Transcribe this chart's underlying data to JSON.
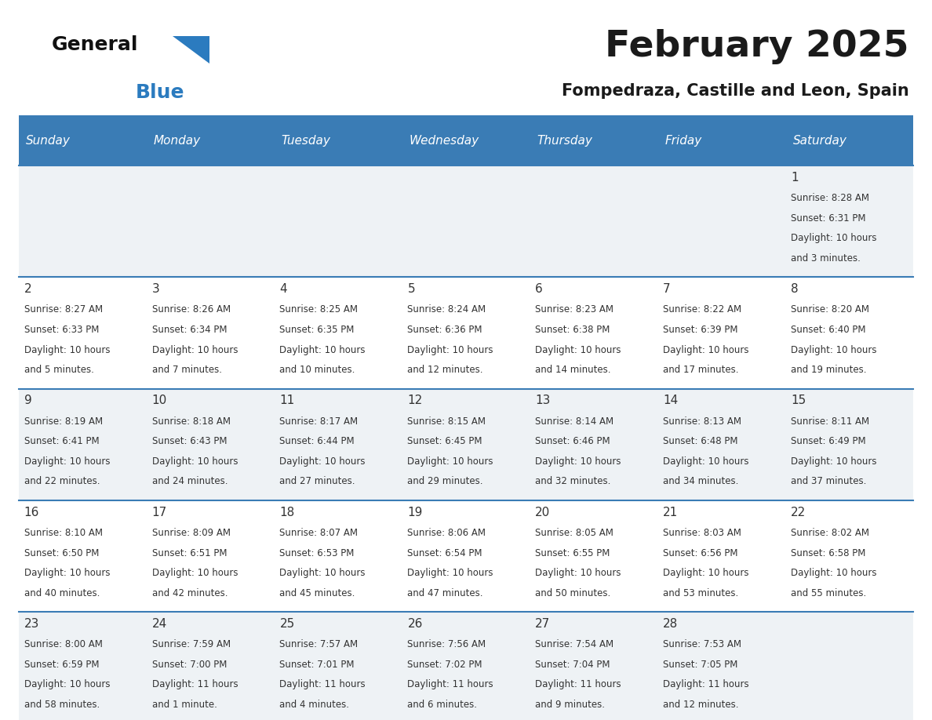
{
  "title": "February 2025",
  "subtitle": "Fompedraza, Castille and Leon, Spain",
  "header_bg": "#3a7cb5",
  "header_text_color": "#ffffff",
  "row_bg_gray": "#eef2f5",
  "row_bg_white": "#ffffff",
  "border_color": "#3a7cb5",
  "text_color": "#333333",
  "days_of_week": [
    "Sunday",
    "Monday",
    "Tuesday",
    "Wednesday",
    "Thursday",
    "Friday",
    "Saturday"
  ],
  "logo_general_color": "#111111",
  "logo_blue_color": "#2b7bbf",
  "calendar": [
    [
      null,
      null,
      null,
      null,
      null,
      null,
      {
        "day": "1",
        "sunrise": "8:28 AM",
        "sunset": "6:31 PM",
        "daylight_line1": "Daylight: 10 hours",
        "daylight_line2": "and 3 minutes."
      }
    ],
    [
      {
        "day": "2",
        "sunrise": "8:27 AM",
        "sunset": "6:33 PM",
        "daylight_line1": "Daylight: 10 hours",
        "daylight_line2": "and 5 minutes."
      },
      {
        "day": "3",
        "sunrise": "8:26 AM",
        "sunset": "6:34 PM",
        "daylight_line1": "Daylight: 10 hours",
        "daylight_line2": "and 7 minutes."
      },
      {
        "day": "4",
        "sunrise": "8:25 AM",
        "sunset": "6:35 PM",
        "daylight_line1": "Daylight: 10 hours",
        "daylight_line2": "and 10 minutes."
      },
      {
        "day": "5",
        "sunrise": "8:24 AM",
        "sunset": "6:36 PM",
        "daylight_line1": "Daylight: 10 hours",
        "daylight_line2": "and 12 minutes."
      },
      {
        "day": "6",
        "sunrise": "8:23 AM",
        "sunset": "6:38 PM",
        "daylight_line1": "Daylight: 10 hours",
        "daylight_line2": "and 14 minutes."
      },
      {
        "day": "7",
        "sunrise": "8:22 AM",
        "sunset": "6:39 PM",
        "daylight_line1": "Daylight: 10 hours",
        "daylight_line2": "and 17 minutes."
      },
      {
        "day": "8",
        "sunrise": "8:20 AM",
        "sunset": "6:40 PM",
        "daylight_line1": "Daylight: 10 hours",
        "daylight_line2": "and 19 minutes."
      }
    ],
    [
      {
        "day": "9",
        "sunrise": "8:19 AM",
        "sunset": "6:41 PM",
        "daylight_line1": "Daylight: 10 hours",
        "daylight_line2": "and 22 minutes."
      },
      {
        "day": "10",
        "sunrise": "8:18 AM",
        "sunset": "6:43 PM",
        "daylight_line1": "Daylight: 10 hours",
        "daylight_line2": "and 24 minutes."
      },
      {
        "day": "11",
        "sunrise": "8:17 AM",
        "sunset": "6:44 PM",
        "daylight_line1": "Daylight: 10 hours",
        "daylight_line2": "and 27 minutes."
      },
      {
        "day": "12",
        "sunrise": "8:15 AM",
        "sunset": "6:45 PM",
        "daylight_line1": "Daylight: 10 hours",
        "daylight_line2": "and 29 minutes."
      },
      {
        "day": "13",
        "sunrise": "8:14 AM",
        "sunset": "6:46 PM",
        "daylight_line1": "Daylight: 10 hours",
        "daylight_line2": "and 32 minutes."
      },
      {
        "day": "14",
        "sunrise": "8:13 AM",
        "sunset": "6:48 PM",
        "daylight_line1": "Daylight: 10 hours",
        "daylight_line2": "and 34 minutes."
      },
      {
        "day": "15",
        "sunrise": "8:11 AM",
        "sunset": "6:49 PM",
        "daylight_line1": "Daylight: 10 hours",
        "daylight_line2": "and 37 minutes."
      }
    ],
    [
      {
        "day": "16",
        "sunrise": "8:10 AM",
        "sunset": "6:50 PM",
        "daylight_line1": "Daylight: 10 hours",
        "daylight_line2": "and 40 minutes."
      },
      {
        "day": "17",
        "sunrise": "8:09 AM",
        "sunset": "6:51 PM",
        "daylight_line1": "Daylight: 10 hours",
        "daylight_line2": "and 42 minutes."
      },
      {
        "day": "18",
        "sunrise": "8:07 AM",
        "sunset": "6:53 PM",
        "daylight_line1": "Daylight: 10 hours",
        "daylight_line2": "and 45 minutes."
      },
      {
        "day": "19",
        "sunrise": "8:06 AM",
        "sunset": "6:54 PM",
        "daylight_line1": "Daylight: 10 hours",
        "daylight_line2": "and 47 minutes."
      },
      {
        "day": "20",
        "sunrise": "8:05 AM",
        "sunset": "6:55 PM",
        "daylight_line1": "Daylight: 10 hours",
        "daylight_line2": "and 50 minutes."
      },
      {
        "day": "21",
        "sunrise": "8:03 AM",
        "sunset": "6:56 PM",
        "daylight_line1": "Daylight: 10 hours",
        "daylight_line2": "and 53 minutes."
      },
      {
        "day": "22",
        "sunrise": "8:02 AM",
        "sunset": "6:58 PM",
        "daylight_line1": "Daylight: 10 hours",
        "daylight_line2": "and 55 minutes."
      }
    ],
    [
      {
        "day": "23",
        "sunrise": "8:00 AM",
        "sunset": "6:59 PM",
        "daylight_line1": "Daylight: 10 hours",
        "daylight_line2": "and 58 minutes."
      },
      {
        "day": "24",
        "sunrise": "7:59 AM",
        "sunset": "7:00 PM",
        "daylight_line1": "Daylight: 11 hours",
        "daylight_line2": "and 1 minute."
      },
      {
        "day": "25",
        "sunrise": "7:57 AM",
        "sunset": "7:01 PM",
        "daylight_line1": "Daylight: 11 hours",
        "daylight_line2": "and 4 minutes."
      },
      {
        "day": "26",
        "sunrise": "7:56 AM",
        "sunset": "7:02 PM",
        "daylight_line1": "Daylight: 11 hours",
        "daylight_line2": "and 6 minutes."
      },
      {
        "day": "27",
        "sunrise": "7:54 AM",
        "sunset": "7:04 PM",
        "daylight_line1": "Daylight: 11 hours",
        "daylight_line2": "and 9 minutes."
      },
      {
        "day": "28",
        "sunrise": "7:53 AM",
        "sunset": "7:05 PM",
        "daylight_line1": "Daylight: 11 hours",
        "daylight_line2": "and 12 minutes."
      },
      null
    ]
  ]
}
